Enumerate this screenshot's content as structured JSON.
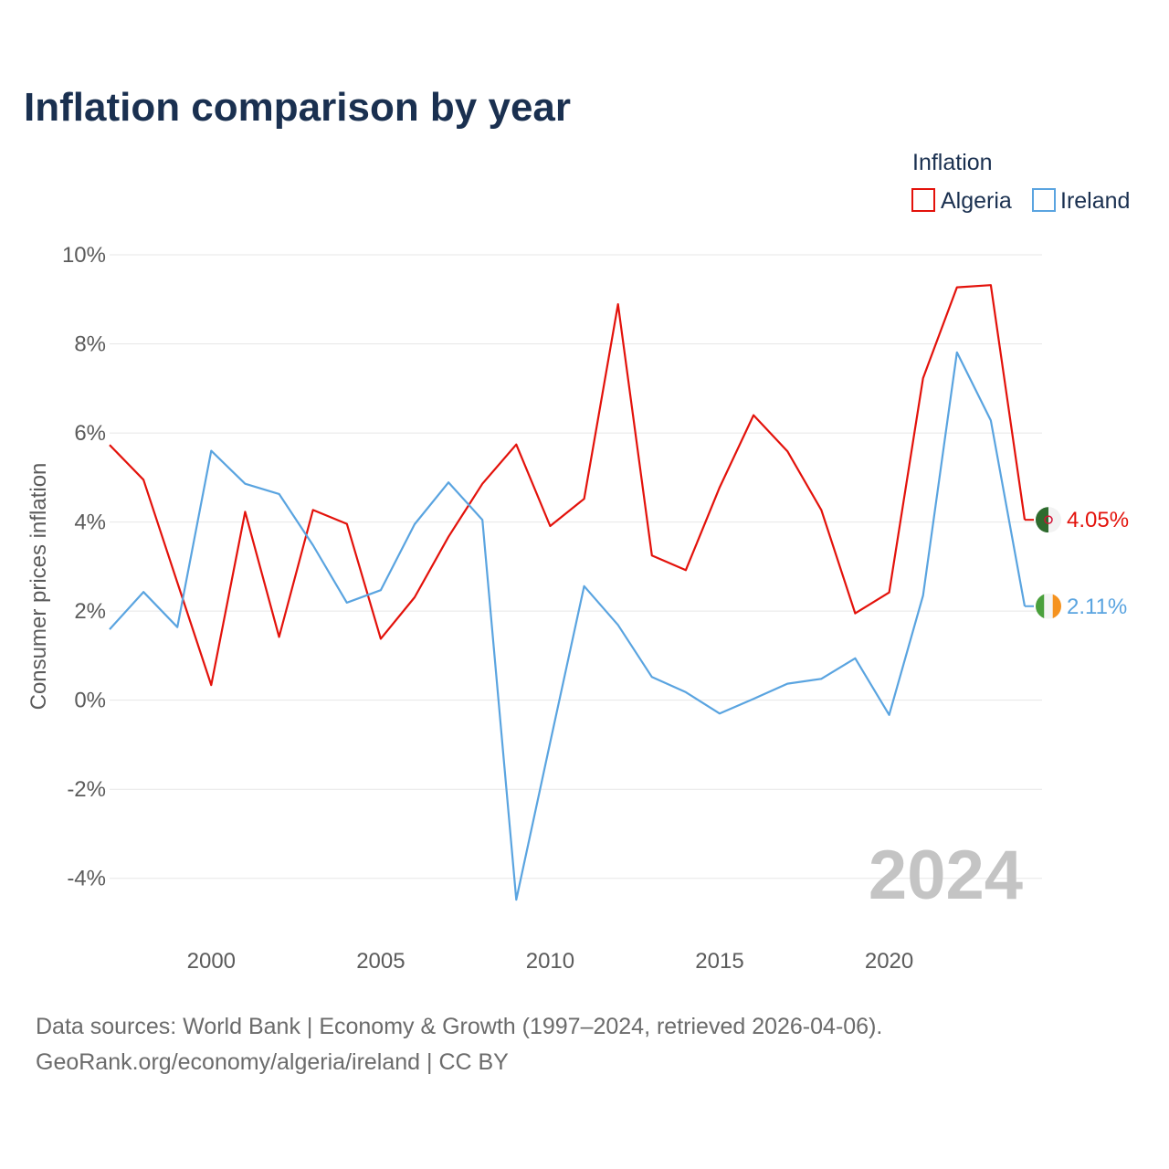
{
  "colors": {
    "algeria": "#e3120b",
    "ireland": "#5aa4e0"
  },
  "chart_data": {
    "type": "line",
    "title": "Inflation comparison by year",
    "ylabel": "Consumer prices inflation",
    "xlabel": "",
    "legend_title": "Inflation",
    "legend_position": "top-right",
    "grid": true,
    "ylim": [
      -4.6,
      10
    ],
    "xlim": [
      1997,
      2024
    ],
    "y_ticks": [
      10,
      8,
      6,
      4,
      2,
      0,
      -2,
      -4
    ],
    "y_tick_labels": [
      "10%",
      "8%",
      "6%",
      "4%",
      "2%",
      "0%",
      "-2%",
      "-4%"
    ],
    "x_ticks": [
      2000,
      2005,
      2010,
      2015,
      2020
    ],
    "x_tick_labels": [
      "2000",
      "2005",
      "2010",
      "2015",
      "2020"
    ],
    "x": [
      1997,
      1998,
      1999,
      2000,
      2001,
      2002,
      2003,
      2004,
      2005,
      2006,
      2007,
      2008,
      2009,
      2010,
      2011,
      2012,
      2013,
      2014,
      2015,
      2016,
      2017,
      2018,
      2019,
      2020,
      2021,
      2022,
      2023,
      2024
    ],
    "series": [
      {
        "name": "Algeria",
        "values": [
          5.73,
          4.95,
          2.64,
          0.34,
          4.23,
          1.42,
          4.27,
          3.96,
          1.38,
          2.31,
          3.67,
          4.86,
          5.74,
          3.91,
          4.52,
          8.89,
          3.25,
          2.92,
          4.78,
          6.4,
          5.59,
          4.27,
          1.95,
          2.42,
          7.23,
          9.27,
          9.32,
          4.05
        ],
        "end_label": "4.05%"
      },
      {
        "name": "Ireland",
        "values": [
          1.59,
          2.43,
          1.64,
          5.6,
          4.86,
          4.63,
          3.48,
          2.19,
          2.47,
          3.95,
          4.89,
          4.05,
          -4.48,
          -0.95,
          2.56,
          1.69,
          0.52,
          0.18,
          -0.3,
          0.03,
          0.37,
          0.48,
          0.94,
          -0.33,
          2.35,
          7.81,
          6.28,
          2.11
        ],
        "end_label": "2.11%"
      }
    ],
    "watermark_year": "2024"
  },
  "source": {
    "line1": "Data sources: World Bank | Economy & Growth (1997–2024, retrieved 2026-04-06).",
    "line2": "GeoRank.org/economy/algeria/ireland | CC BY"
  },
  "icons": {
    "algeria_flag": "algeria-flag-icon",
    "ireland_flag": "ireland-flag-icon"
  }
}
